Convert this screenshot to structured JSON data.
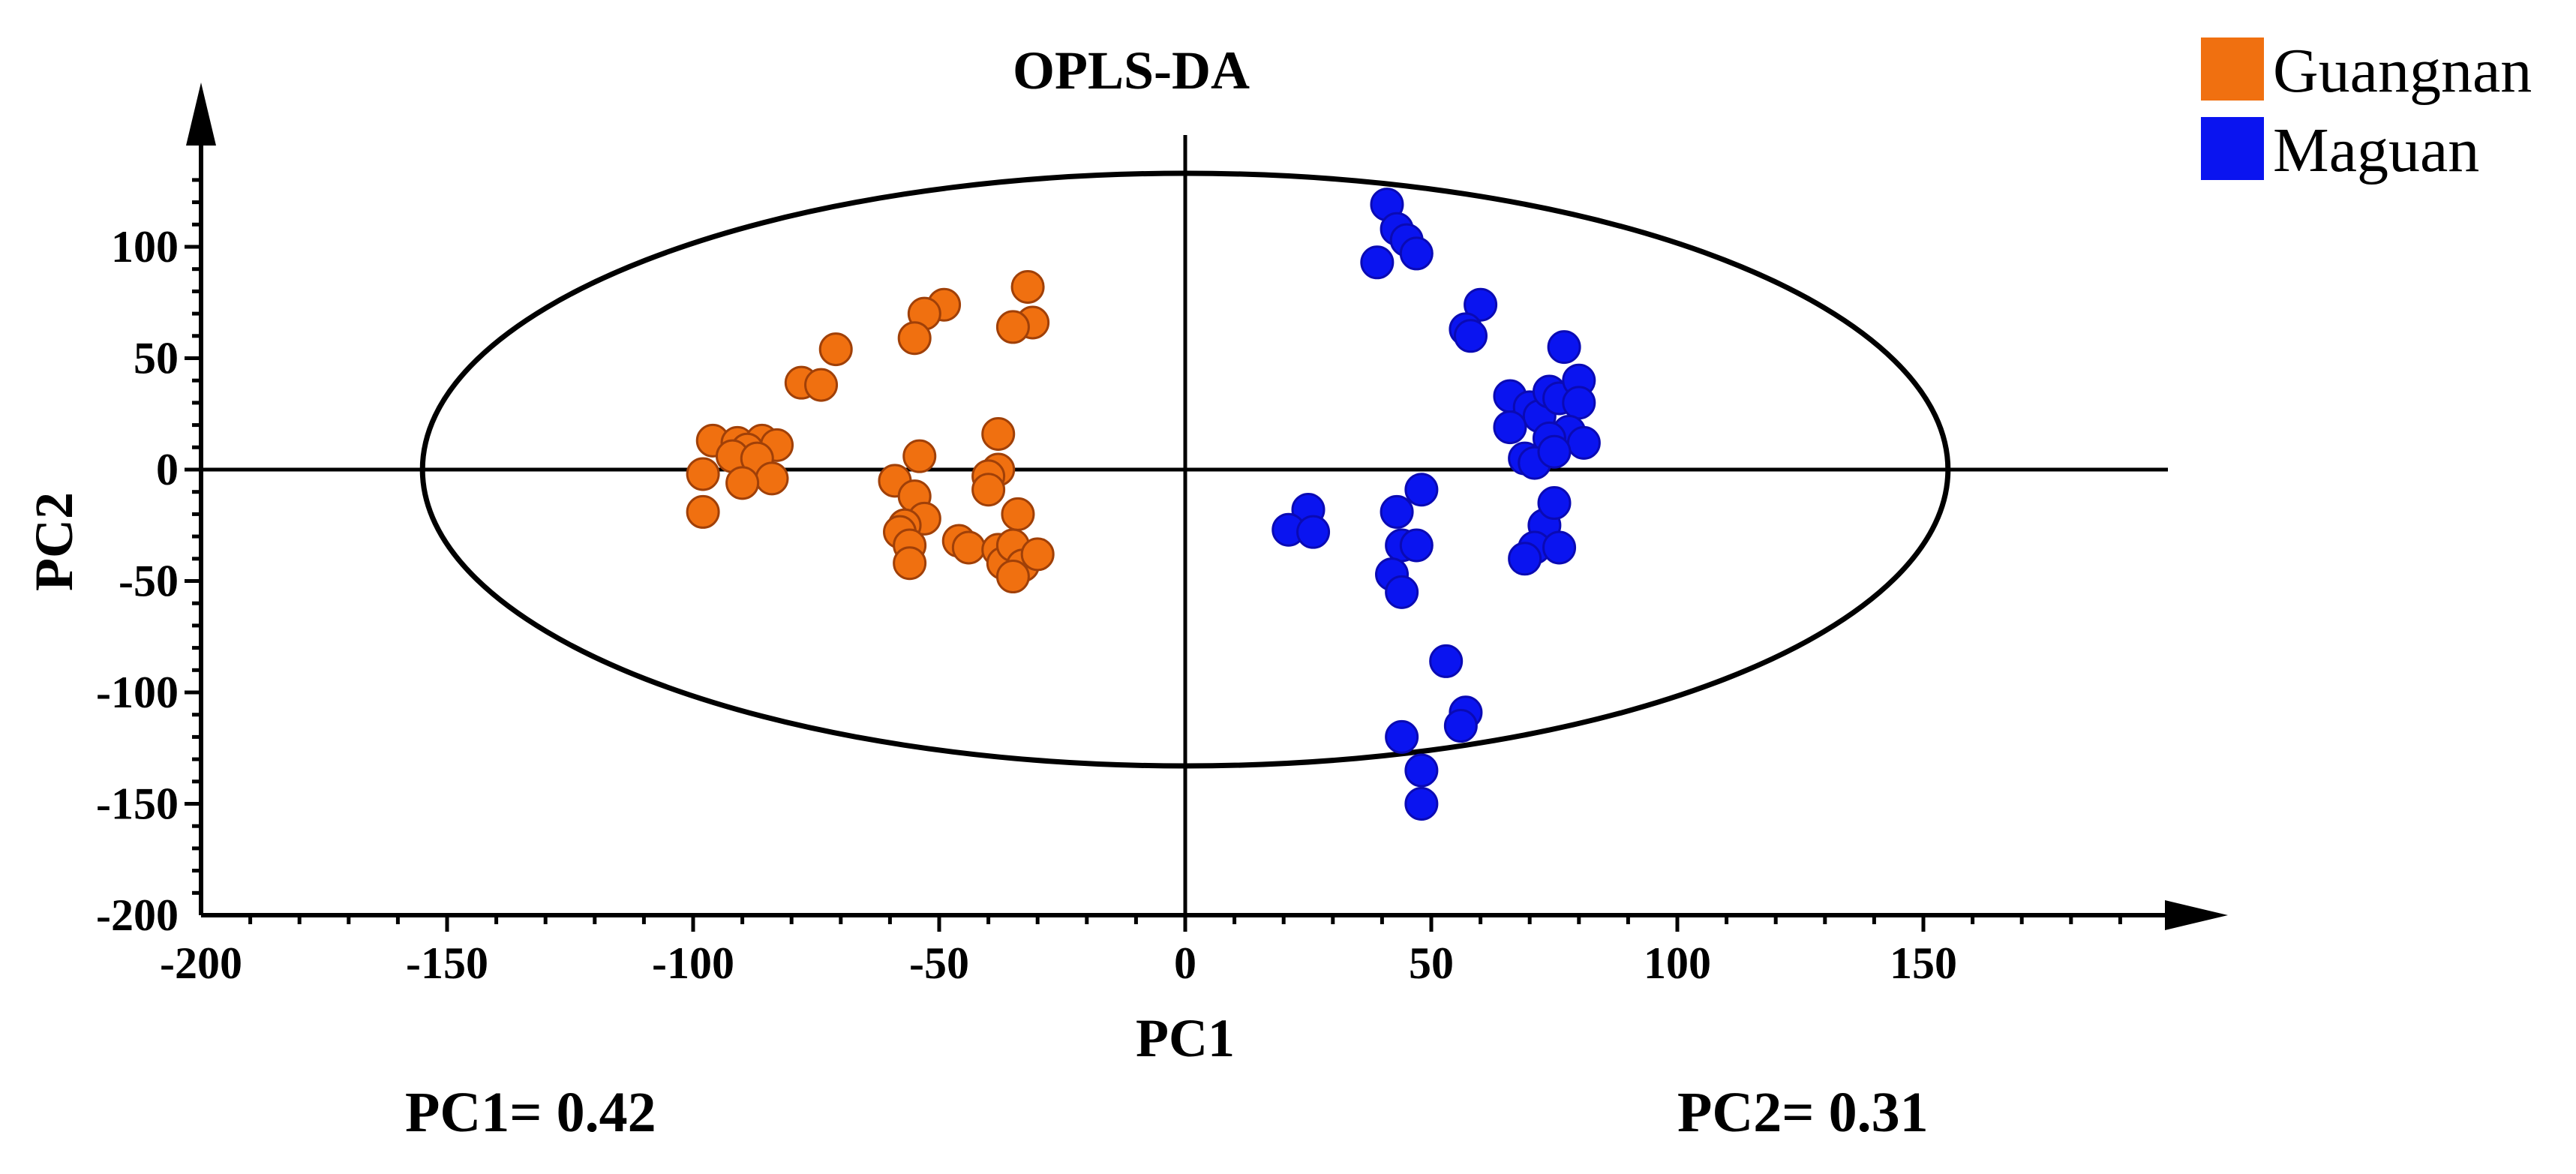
{
  "chart_data": {
    "type": "scatter",
    "title": "OPLS-DA",
    "xlabel": "PC1",
    "ylabel": "PC2",
    "xlim": [
      -200,
      200
    ],
    "ylim": [
      -200,
      135
    ],
    "x_ticks": [
      -200,
      -150,
      -100,
      -50,
      0,
      50,
      100,
      150
    ],
    "y_ticks": [
      -200,
      -150,
      -100,
      -50,
      0,
      50,
      100
    ],
    "ellipse": {
      "cx": 0,
      "cy": 0,
      "rx": 155,
      "ry": 133
    },
    "legend_position": "top-right",
    "annotations": {
      "pc1": "PC1= 0.42",
      "pc2": "PC2= 0.31"
    },
    "series": [
      {
        "name": "Guangnan",
        "color": "#f07010",
        "stroke": "#a04008",
        "points": [
          [
            -32,
            82
          ],
          [
            -31,
            66
          ],
          [
            -35,
            64
          ],
          [
            -49,
            74
          ],
          [
            -53,
            70
          ],
          [
            -55,
            59
          ],
          [
            -71,
            54
          ],
          [
            -78,
            39
          ],
          [
            -74,
            38
          ],
          [
            -96,
            13
          ],
          [
            -91,
            12
          ],
          [
            -86,
            13
          ],
          [
            -83,
            11
          ],
          [
            -89,
            9
          ],
          [
            -92,
            6
          ],
          [
            -87,
            5
          ],
          [
            -98,
            -2
          ],
          [
            -84,
            -4
          ],
          [
            -90,
            -6
          ],
          [
            -98,
            -19
          ],
          [
            -54,
            6
          ],
          [
            -38,
            16
          ],
          [
            -38,
            0
          ],
          [
            -40,
            -3
          ],
          [
            -40,
            -9
          ],
          [
            -59,
            -5
          ],
          [
            -55,
            -12
          ],
          [
            -53,
            -22
          ],
          [
            -57,
            -25
          ],
          [
            -58,
            -28
          ],
          [
            -34,
            -20
          ],
          [
            -56,
            -34
          ],
          [
            -56,
            -42
          ],
          [
            -46,
            -32
          ],
          [
            -44,
            -35
          ],
          [
            -38,
            -36
          ],
          [
            -37,
            -42
          ],
          [
            -35,
            -34
          ],
          [
            -33,
            -43
          ],
          [
            -35,
            -48
          ],
          [
            -30,
            -38
          ]
        ]
      },
      {
        "name": "Maguan",
        "color": "#0a14f0",
        "stroke": "#0a0ab4",
        "points": [
          [
            41,
            119
          ],
          [
            43,
            108
          ],
          [
            45,
            103
          ],
          [
            47,
            97
          ],
          [
            39,
            93
          ],
          [
            60,
            74
          ],
          [
            57,
            63
          ],
          [
            58,
            60
          ],
          [
            77,
            55
          ],
          [
            66,
            33
          ],
          [
            70,
            28
          ],
          [
            72,
            24
          ],
          [
            74,
            35
          ],
          [
            76,
            32
          ],
          [
            80,
            40
          ],
          [
            80,
            30
          ],
          [
            66,
            19
          ],
          [
            78,
            17
          ],
          [
            74,
            14
          ],
          [
            81,
            12
          ],
          [
            69,
            5
          ],
          [
            71,
            3
          ],
          [
            75,
            8
          ],
          [
            48,
            -9
          ],
          [
            43,
            -19
          ],
          [
            25,
            -18
          ],
          [
            21,
            -27
          ],
          [
            26,
            -28
          ],
          [
            44,
            -34
          ],
          [
            47,
            -34
          ],
          [
            73,
            -25
          ],
          [
            71,
            -35
          ],
          [
            76,
            -35
          ],
          [
            75,
            -15
          ],
          [
            69,
            -40
          ],
          [
            42,
            -47
          ],
          [
            44,
            -55
          ],
          [
            53,
            -86
          ],
          [
            57,
            -109
          ],
          [
            56,
            -115
          ],
          [
            44,
            -120
          ],
          [
            48,
            -135
          ],
          [
            48,
            -150
          ]
        ]
      }
    ]
  }
}
